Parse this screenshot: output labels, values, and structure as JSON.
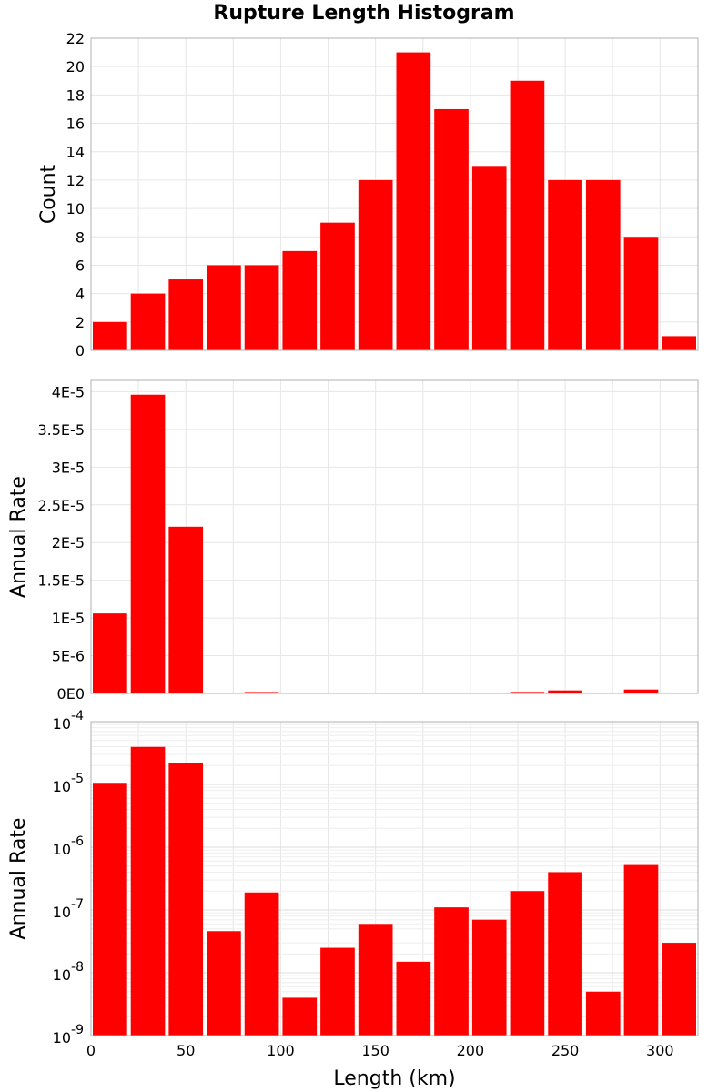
{
  "chart_data": [
    {
      "type": "bar",
      "title": "Rupture Length Histogram",
      "ylabel": "Count",
      "xlim": [
        0,
        320
      ],
      "ylim": [
        0,
        22
      ],
      "bin_width": 20,
      "x": [
        10,
        30,
        50,
        70,
        90,
        110,
        130,
        150,
        170,
        190,
        210,
        230,
        250,
        270,
        290,
        310
      ],
      "values": [
        2,
        4,
        5,
        6,
        6,
        7,
        9,
        12,
        21,
        17,
        13,
        19,
        12,
        12,
        8,
        1
      ],
      "yticks": [
        0,
        2,
        4,
        6,
        8,
        10,
        12,
        14,
        16,
        18,
        20,
        22
      ],
      "ytick_labels": [
        "0",
        "2",
        "4",
        "6",
        "8",
        "10",
        "12",
        "14",
        "16",
        "18",
        "20",
        "22"
      ],
      "color": "#ff0000",
      "grid": true
    },
    {
      "type": "bar",
      "ylabel": "Annual Rate",
      "xlim": [
        0,
        320
      ],
      "ylim": [
        0,
        4.15e-05
      ],
      "bin_width": 20,
      "x": [
        10,
        30,
        50,
        70,
        90,
        110,
        130,
        150,
        170,
        190,
        210,
        230,
        250,
        270,
        290,
        310
      ],
      "values": [
        1.06e-05,
        3.96e-05,
        2.21e-05,
        4.6e-08,
        1.9e-07,
        4e-09,
        2.5e-08,
        6e-08,
        1.5e-08,
        1.1e-07,
        7e-08,
        2e-07,
        4e-07,
        5e-09,
        5.2e-07,
        3e-08
      ],
      "yticks": [
        0,
        5e-06,
        1e-05,
        1.5e-05,
        2e-05,
        2.5e-05,
        3e-05,
        3.5e-05,
        4e-05
      ],
      "ytick_labels": [
        "0E0",
        "5E-6",
        "1E-5",
        "1.5E-5",
        "2E-5",
        "2.5E-5",
        "3E-5",
        "3.5E-5",
        "4E-5"
      ],
      "color": "#ff0000",
      "grid": true
    },
    {
      "type": "bar",
      "ylabel": "Annual Rate",
      "xlabel": "Length (km)",
      "yscale": "log",
      "xlim": [
        0,
        320
      ],
      "ylim": [
        1e-09,
        0.0001
      ],
      "bin_width": 20,
      "x": [
        10,
        30,
        50,
        70,
        90,
        110,
        130,
        150,
        170,
        190,
        210,
        230,
        250,
        270,
        290,
        310
      ],
      "values": [
        1.06e-05,
        3.96e-05,
        2.21e-05,
        4.6e-08,
        1.9e-07,
        4e-09,
        2.5e-08,
        6e-08,
        1.5e-08,
        1.1e-07,
        7e-08,
        2e-07,
        4e-07,
        5e-09,
        5.2e-07,
        3e-08
      ],
      "ytick_labels": [
        {
          "base": "10",
          "exp": "-9"
        },
        {
          "base": "10",
          "exp": "-8"
        },
        {
          "base": "10",
          "exp": "-7"
        },
        {
          "base": "10",
          "exp": "-6"
        },
        {
          "base": "10",
          "exp": "-5"
        },
        {
          "base": "10",
          "exp": "-4"
        }
      ],
      "xticks": [
        0,
        50,
        100,
        150,
        200,
        250,
        300
      ],
      "xtick_labels": [
        "0",
        "50",
        "100",
        "150",
        "200",
        "250",
        "300"
      ],
      "color": "#ff0000",
      "grid": true
    }
  ]
}
